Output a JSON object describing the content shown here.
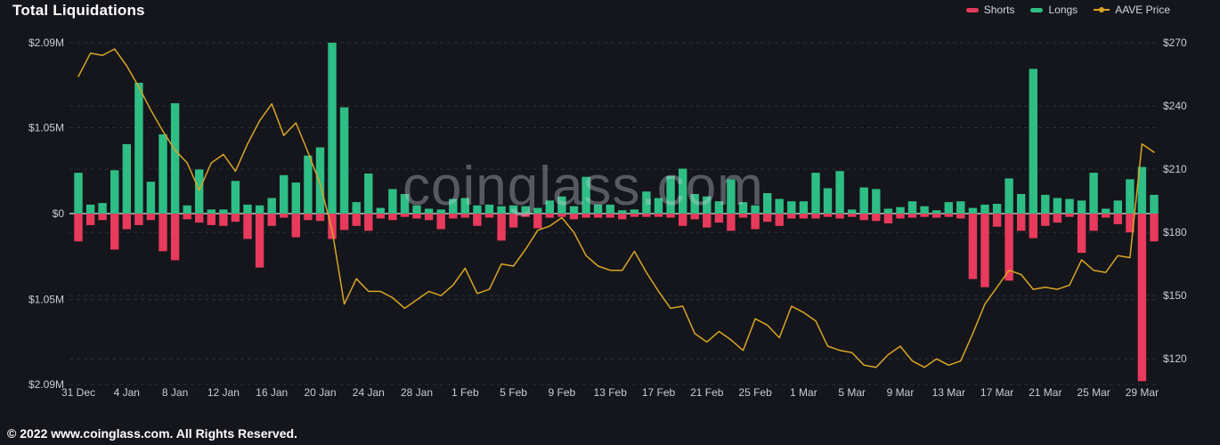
{
  "header": {
    "title": "Total Liquidations"
  },
  "legend": [
    {
      "label": "Shorts",
      "color": "#e83a5c",
      "marker": "dash"
    },
    {
      "label": "Longs",
      "color": "#2ebd85",
      "marker": "dash"
    },
    {
      "label": "AAVE Price",
      "color": "#d9a426",
      "marker": "line-dot"
    }
  ],
  "watermark": "coinglass.com",
  "footer": {
    "copyright": "© 2022 www.coinglass.com. All Rights Reserved."
  },
  "chart_data": {
    "type": "combo-bar-line",
    "title": "Total Liquidations",
    "grid": "dashed-horizontal",
    "legend_position": "top-right",
    "x_tick_every": 4,
    "categories": [
      "31 Dec",
      "1 Jan",
      "2 Jan",
      "3 Jan",
      "4 Jan",
      "5 Jan",
      "6 Jan",
      "7 Jan",
      "8 Jan",
      "9 Jan",
      "10 Jan",
      "11 Jan",
      "12 Jan",
      "13 Jan",
      "14 Jan",
      "15 Jan",
      "16 Jan",
      "17 Jan",
      "18 Jan",
      "19 Jan",
      "20 Jan",
      "21 Jan",
      "22 Jan",
      "23 Jan",
      "24 Jan",
      "25 Jan",
      "26 Jan",
      "27 Jan",
      "28 Jan",
      "29 Jan",
      "30 Jan",
      "31 Jan",
      "1 Feb",
      "2 Feb",
      "3 Feb",
      "4 Feb",
      "5 Feb",
      "6 Feb",
      "7 Feb",
      "8 Feb",
      "9 Feb",
      "10 Feb",
      "11 Feb",
      "12 Feb",
      "13 Feb",
      "14 Feb",
      "15 Feb",
      "16 Feb",
      "17 Feb",
      "18 Feb",
      "19 Feb",
      "20 Feb",
      "21 Feb",
      "22 Feb",
      "23 Feb",
      "24 Feb",
      "25 Feb",
      "26 Feb",
      "27 Feb",
      "28 Feb",
      "1 Mar",
      "2 Mar",
      "3 Mar",
      "4 Mar",
      "5 Mar",
      "6 Mar",
      "7 Mar",
      "8 Mar",
      "9 Mar",
      "10 Mar",
      "11 Mar",
      "12 Mar",
      "13 Mar",
      "14 Mar",
      "15 Mar",
      "16 Mar",
      "17 Mar",
      "18 Mar",
      "19 Mar",
      "20 Mar",
      "21 Mar",
      "22 Mar",
      "23 Mar",
      "24 Mar",
      "25 Mar",
      "26 Mar",
      "27 Mar",
      "28 Mar",
      "29 Mar",
      "30 Mar"
    ],
    "series": [
      {
        "name": "Shorts",
        "type": "bar",
        "direction": "down",
        "color": "#e83a5c",
        "unit": "M USD",
        "values": [
          0.34,
          0.14,
          0.08,
          0.44,
          0.19,
          0.14,
          0.08,
          0.46,
          0.57,
          0.07,
          0.11,
          0.14,
          0.15,
          0.1,
          0.31,
          0.66,
          0.15,
          0.05,
          0.29,
          0.08,
          0.09,
          0.31,
          0.2,
          0.15,
          0.21,
          0.06,
          0.08,
          0.04,
          0.06,
          0.08,
          0.19,
          0.06,
          0.05,
          0.15,
          0.05,
          0.33,
          0.17,
          0.04,
          0.18,
          0.05,
          0.04,
          0.07,
          0.05,
          0.05,
          0.05,
          0.07,
          0.04,
          0.04,
          0.04,
          0.05,
          0.15,
          0.07,
          0.17,
          0.11,
          0.21,
          0.05,
          0.19,
          0.1,
          0.15,
          0.06,
          0.06,
          0.06,
          0.04,
          0.06,
          0.04,
          0.08,
          0.09,
          0.12,
          0.06,
          0.05,
          0.04,
          0.05,
          0.04,
          0.06,
          0.8,
          0.9,
          0.16,
          0.82,
          0.21,
          0.3,
          0.15,
          0.11,
          0.04,
          0.48,
          0.21,
          0.05,
          0.13,
          0.23,
          2.05,
          0.34
        ]
      },
      {
        "name": "Longs",
        "type": "bar",
        "direction": "up",
        "color": "#2ebd85",
        "unit": "M USD",
        "values": [
          0.5,
          0.11,
          0.13,
          0.53,
          0.85,
          1.6,
          0.39,
          0.97,
          1.35,
          0.1,
          0.54,
          0.05,
          0.05,
          0.4,
          0.11,
          0.1,
          0.19,
          0.47,
          0.38,
          0.71,
          0.81,
          2.09,
          1.3,
          0.14,
          0.49,
          0.07,
          0.3,
          0.24,
          0.1,
          0.06,
          0.05,
          0.18,
          0.19,
          0.1,
          0.11,
          0.09,
          0.1,
          0.09,
          0.07,
          0.16,
          0.21,
          0.09,
          0.45,
          0.11,
          0.11,
          0.04,
          0.05,
          0.27,
          0.19,
          0.46,
          0.55,
          0.24,
          0.21,
          0.15,
          0.42,
          0.14,
          0.1,
          0.25,
          0.18,
          0.15,
          0.15,
          0.5,
          0.31,
          0.52,
          0.05,
          0.32,
          0.3,
          0.06,
          0.08,
          0.15,
          0.09,
          0.04,
          0.14,
          0.15,
          0.07,
          0.11,
          0.12,
          0.43,
          0.24,
          1.77,
          0.23,
          0.19,
          0.18,
          0.16,
          0.5,
          0.06,
          0.16,
          0.42,
          0.57,
          0.23
        ]
      },
      {
        "name": "AAVE Price",
        "type": "line",
        "axis": "right",
        "color": "#d9a426",
        "unit": "USD",
        "values": [
          254,
          265,
          264,
          267,
          259,
          249,
          238,
          228,
          219,
          213,
          200,
          213,
          217,
          209,
          222,
          233,
          241,
          226,
          232,
          218,
          203,
          181,
          146,
          158,
          152,
          152,
          149,
          144,
          148,
          152,
          150,
          155,
          163,
          151,
          153,
          165,
          164,
          172,
          181,
          183,
          187,
          180,
          169,
          164,
          162,
          162,
          171,
          161,
          152,
          144,
          145,
          132,
          128,
          133,
          129,
          124,
          139,
          136,
          130,
          145,
          142,
          138,
          126,
          124,
          123,
          117,
          116,
          122,
          126,
          119,
          116,
          120,
          117,
          119,
          132,
          146,
          154,
          162,
          160,
          153,
          154,
          153,
          155,
          167,
          162,
          161,
          169,
          168,
          222,
          218
        ]
      }
    ],
    "left_axis": {
      "max": 2.09,
      "tick_values": [
        2.09,
        1.05,
        0,
        -1.05,
        -2.09
      ],
      "tick_labels": [
        "$2.09M",
        "$1.05M",
        "$0",
        "$1.05M",
        "$2.09M"
      ]
    },
    "right_axis": {
      "min": 120,
      "max": 270,
      "tick_values": [
        270,
        240,
        210,
        180,
        150,
        120
      ],
      "tick_labels": [
        "$270",
        "$240",
        "$210",
        "$180",
        "$150",
        "$120"
      ]
    }
  }
}
